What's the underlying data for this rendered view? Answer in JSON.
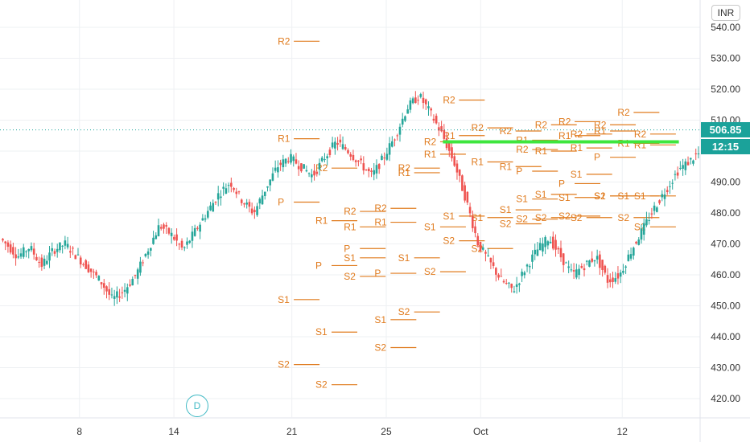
{
  "currency_label": "INR",
  "last_price_label": "506.85",
  "countdown_label": "12:15",
  "dividend_marker": "D",
  "colors": {
    "up": "#26a69a",
    "down": "#ef5350",
    "pivot": "#e07b1e",
    "resistance_line": "#3ee63e",
    "badge": "#1ba29a",
    "grid": "#eef0f3",
    "dotted_price": "#1ba29a"
  },
  "chart_data": {
    "type": "candlestick",
    "y_axis": {
      "range": [
        414,
        544
      ],
      "ticks": [
        "420.00",
        "430.00",
        "440.00",
        "450.00",
        "460.00",
        "470.00",
        "480.00",
        "490.00",
        "500.00",
        "510.00",
        "520.00",
        "530.00",
        "540.00"
      ]
    },
    "x_axis": {
      "tick_labels": [
        {
          "label": "8",
          "day": 2
        },
        {
          "label": "14",
          "day": 6
        },
        {
          "label": "21",
          "day": 11
        },
        {
          "label": "25",
          "day": 15
        },
        {
          "label": "Oct",
          "day": 19
        },
        {
          "label": "12",
          "day": 25
        }
      ],
      "day_range": [
        -1.3,
        28.3
      ]
    },
    "last_price": 506.85,
    "resistance_line": {
      "value": 503,
      "from_day": 17.4,
      "to_day": 27.4
    },
    "price_path": [
      [
        -1.3,
        472
      ],
      [
        -1,
        470
      ],
      [
        -0.5,
        466
      ],
      [
        0,
        469
      ],
      [
        0.5,
        463
      ],
      [
        1,
        468
      ],
      [
        1.5,
        470
      ],
      [
        2,
        466
      ],
      [
        2.5,
        462
      ],
      [
        3,
        458
      ],
      [
        3.5,
        452
      ],
      [
        4,
        455
      ],
      [
        4.5,
        460
      ],
      [
        5,
        468
      ],
      [
        5.5,
        476
      ],
      [
        6,
        473
      ],
      [
        6.5,
        468
      ],
      [
        7,
        474
      ],
      [
        7.5,
        480
      ],
      [
        8,
        486
      ],
      [
        8.5,
        490
      ],
      [
        9,
        484
      ],
      [
        9.5,
        480
      ],
      [
        10,
        488
      ],
      [
        10.5,
        495
      ],
      [
        11,
        498
      ],
      [
        11.5,
        495
      ],
      [
        12,
        492
      ],
      [
        12.5,
        498
      ],
      [
        13,
        503
      ],
      [
        13.5,
        500
      ],
      [
        14,
        496
      ],
      [
        14.5,
        492
      ],
      [
        15,
        498
      ],
      [
        15.5,
        505
      ],
      [
        16,
        514
      ],
      [
        16.5,
        518
      ],
      [
        17,
        512
      ],
      [
        17.5,
        505
      ],
      [
        18,
        496
      ],
      [
        18.5,
        484
      ],
      [
        19,
        470
      ],
      [
        19.5,
        464
      ],
      [
        20,
        458
      ],
      [
        20.5,
        455
      ],
      [
        21,
        462
      ],
      [
        21.5,
        468
      ],
      [
        22,
        472
      ],
      [
        22.5,
        466
      ],
      [
        23,
        460
      ],
      [
        23.5,
        463
      ],
      [
        24,
        466
      ],
      [
        24.5,
        458
      ],
      [
        25,
        460
      ],
      [
        25.5,
        468
      ],
      [
        26,
        475
      ],
      [
        26.5,
        482
      ],
      [
        27,
        488
      ],
      [
        27.5,
        494
      ],
      [
        28,
        497
      ],
      [
        28.3,
        499
      ]
    ],
    "pivot_levels": [
      {
        "label": "R2",
        "value": 535.5,
        "day": 10.4
      },
      {
        "label": "R1",
        "value": 504.0,
        "day": 10.4
      },
      {
        "label": "P",
        "value": 483.5,
        "day": 10.4
      },
      {
        "label": "S1",
        "value": 452.0,
        "day": 10.4
      },
      {
        "label": "S2",
        "value": 431.0,
        "day": 10.4
      },
      {
        "label": "R2",
        "value": 494.5,
        "day": 12.0
      },
      {
        "label": "R1",
        "value": 477.5,
        "day": 12.0
      },
      {
        "label": "P",
        "value": 463.0,
        "day": 12.0
      },
      {
        "label": "S1",
        "value": 441.5,
        "day": 12.0
      },
      {
        "label": "S2",
        "value": 424.5,
        "day": 12.0
      },
      {
        "label": "R2",
        "value": 480.5,
        "day": 13.2
      },
      {
        "label": "R1",
        "value": 475.5,
        "day": 13.2
      },
      {
        "label": "P",
        "value": 468.5,
        "day": 13.2
      },
      {
        "label": "S1",
        "value": 465.5,
        "day": 13.2
      },
      {
        "label": "S2",
        "value": 459.5,
        "day": 13.2
      },
      {
        "label": "R2",
        "value": 481.5,
        "day": 14.5
      },
      {
        "label": "R1",
        "value": 477.0,
        "day": 14.5
      },
      {
        "label": "P",
        "value": 460.5,
        "day": 14.5
      },
      {
        "label": "S1",
        "value": 445.5,
        "day": 14.5
      },
      {
        "label": "S2",
        "value": 436.5,
        "day": 14.5
      },
      {
        "label": "R2",
        "value": 494.5,
        "day": 15.5
      },
      {
        "label": "R1",
        "value": 493.0,
        "day": 15.5
      },
      {
        "label": "S1",
        "value": 465.5,
        "day": 15.5
      },
      {
        "label": "S2",
        "value": 448.0,
        "day": 15.5
      },
      {
        "label": "R2",
        "value": 503.0,
        "day": 16.6
      },
      {
        "label": "R1",
        "value": 499.0,
        "day": 16.6
      },
      {
        "label": "S1",
        "value": 475.5,
        "day": 16.6
      },
      {
        "label": "S2",
        "value": 461.0,
        "day": 16.6
      },
      {
        "label": "R2",
        "value": 516.5,
        "day": 17.4
      },
      {
        "label": "R1",
        "value": 505.0,
        "day": 17.4
      },
      {
        "label": "S1",
        "value": 479.0,
        "day": 17.4
      },
      {
        "label": "S2",
        "value": 471.0,
        "day": 17.4
      },
      {
        "label": "R2",
        "value": 507.5,
        "day": 18.6
      },
      {
        "label": "R1",
        "value": 496.5,
        "day": 18.6
      },
      {
        "label": "S1",
        "value": 478.5,
        "day": 18.6
      },
      {
        "label": "S2",
        "value": 468.5,
        "day": 18.6
      },
      {
        "label": "R2",
        "value": 506.5,
        "day": 19.8
      },
      {
        "label": "R1",
        "value": 495.0,
        "day": 19.8
      },
      {
        "label": "S1",
        "value": 481.0,
        "day": 19.8
      },
      {
        "label": "S2",
        "value": 476.5,
        "day": 19.8
      },
      {
        "label": "R2",
        "value": 500.5,
        "day": 20.5
      },
      {
        "label": "R1",
        "value": 503.5,
        "day": 20.5
      },
      {
        "label": "P",
        "value": 493.5,
        "day": 20.5
      },
      {
        "label": "S1",
        "value": 484.5,
        "day": 20.5
      },
      {
        "label": "S2",
        "value": 478.0,
        "day": 20.5
      },
      {
        "label": "R2",
        "value": 508.5,
        "day": 21.3
      },
      {
        "label": "R1",
        "value": 500.0,
        "day": 21.3
      },
      {
        "label": "S1",
        "value": 486.0,
        "day": 21.3
      },
      {
        "label": "S2",
        "value": 478.5,
        "day": 21.3
      },
      {
        "label": "R2",
        "value": 509.5,
        "day": 22.3
      },
      {
        "label": "R1",
        "value": 505.0,
        "day": 22.3
      },
      {
        "label": "P",
        "value": 489.5,
        "day": 22.3
      },
      {
        "label": "S1",
        "value": 485.0,
        "day": 22.3
      },
      {
        "label": "S2",
        "value": 479.0,
        "day": 22.3
      },
      {
        "label": "R2",
        "value": 505.5,
        "day": 22.8
      },
      {
        "label": "R1",
        "value": 501.0,
        "day": 22.8
      },
      {
        "label": "S1",
        "value": 492.5,
        "day": 22.8
      },
      {
        "label": "S2",
        "value": 478.5,
        "day": 22.8
      },
      {
        "label": "R2",
        "value": 508.5,
        "day": 23.8
      },
      {
        "label": "R1",
        "value": 506.5,
        "day": 23.8
      },
      {
        "label": "P",
        "value": 498.0,
        "day": 23.8
      },
      {
        "label": "S1",
        "value": 485.5,
        "day": 23.8
      },
      {
        "label": "S2",
        "value": 485.5,
        "day": 23.8
      },
      {
        "label": "R2",
        "value": 512.5,
        "day": 24.8
      },
      {
        "label": "R1",
        "value": 502.5,
        "day": 24.8
      },
      {
        "label": "S1",
        "value": 485.5,
        "day": 24.8
      },
      {
        "label": "S2",
        "value": 478.5,
        "day": 24.8
      },
      {
        "label": "R2",
        "value": 505.5,
        "day": 25.5
      },
      {
        "label": "R1",
        "value": 502.0,
        "day": 25.5
      },
      {
        "label": "S1",
        "value": 485.5,
        "day": 25.5
      },
      {
        "label": "S2",
        "value": 475.5,
        "day": 25.5
      }
    ]
  }
}
